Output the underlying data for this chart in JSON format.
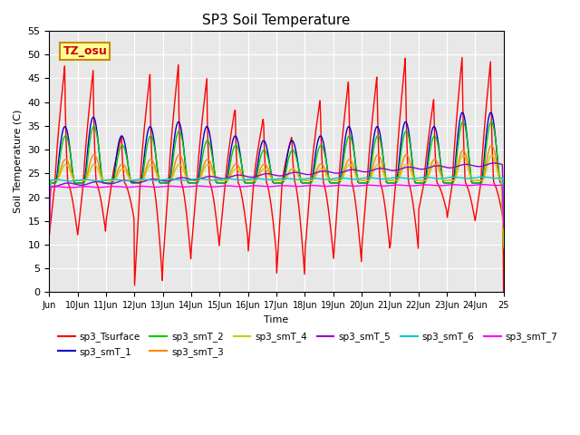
{
  "title": "SP3 Soil Temperature",
  "ylabel": "Soil Temperature (C)",
  "xlabel": "Time",
  "annotation": "TZ_osu",
  "annotation_color": "#cc0000",
  "annotation_bg": "#ffff99",
  "annotation_border": "#cc8800",
  "ylim": [
    0,
    55
  ],
  "plot_bg": "#e8e8e8",
  "xtick_labels": [
    "Jun",
    "10Jun",
    "11Jun",
    "12Jun",
    "13Jun",
    "14Jun",
    "15Jun",
    "16Jun",
    "17Jun",
    "18Jun",
    "19Jun",
    "20Jun",
    "21Jun",
    "22Jun",
    "23Jun",
    "24Jun",
    "25"
  ],
  "series_colors": {
    "sp3_Tsurface": "#ff0000",
    "sp3_smT_1": "#0000cc",
    "sp3_smT_2": "#00cc00",
    "sp3_smT_3": "#ff8800",
    "sp3_smT_4": "#cccc00",
    "sp3_smT_5": "#9900cc",
    "sp3_smT_6": "#00cccc",
    "sp3_smT_7": "#ff00ff"
  }
}
